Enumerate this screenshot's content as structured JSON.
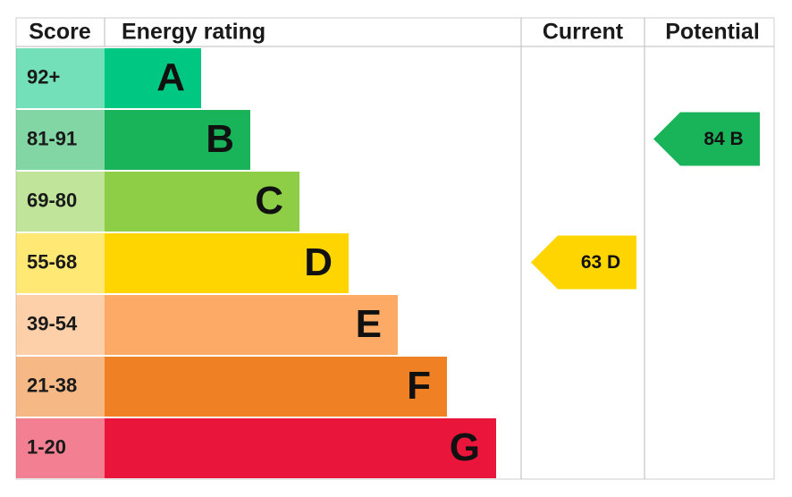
{
  "header": {
    "score": "Score",
    "energy_rating": "Energy rating",
    "current": "Current",
    "potential": "Potential"
  },
  "bands": [
    {
      "score": "92+",
      "letter": "A",
      "color": "#00c781"
    },
    {
      "score": "81-91",
      "letter": "B",
      "color": "#19b459"
    },
    {
      "score": "69-80",
      "letter": "C",
      "color": "#8dce46"
    },
    {
      "score": "55-68",
      "letter": "D",
      "color": "#ffd500"
    },
    {
      "score": "39-54",
      "letter": "E",
      "color": "#fcaa65"
    },
    {
      "score": "21-38",
      "letter": "F",
      "color": "#ef8023"
    },
    {
      "score": "1-20",
      "letter": "G",
      "color": "#e9153b"
    }
  ],
  "current": {
    "label": "63 D"
  },
  "potential": {
    "label": "84 B"
  }
}
